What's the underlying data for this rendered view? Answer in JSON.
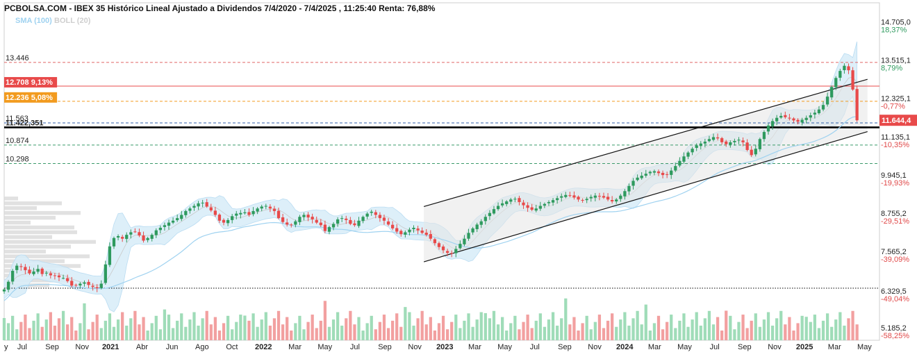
{
  "chart_data": {
    "type": "candlestick",
    "title": "PCBOLSA.COM - IBEX 35 Histórico Lineal Ajustado a Dividendos 7/4/2020 - 7/4/2025 , 11:25:40 Renta: 76,88%",
    "legend": [
      {
        "name": "SMA (100)",
        "color": "#9fd2f0"
      },
      {
        "name": "BOLL (20)",
        "color": "#cfcfcf"
      }
    ],
    "y_range": [
      4800,
      15300
    ],
    "y_ticks": [
      {
        "price": "14.705,0",
        "pct": "18,37%",
        "value": 14705,
        "dir": "pos"
      },
      {
        "price": "13.515,1",
        "pct": "8,79%",
        "value": 13515.1,
        "dir": "pos"
      },
      {
        "price": "12.325,1",
        "pct": "-0,77%",
        "value": 12325.1,
        "dir": "neg"
      },
      {
        "price": "11.135,1",
        "pct": "-10,35%",
        "value": 11135.1,
        "dir": "neg"
      },
      {
        "price": "9.945,1",
        "pct": "-19,93%",
        "value": 9945.1,
        "dir": "neg"
      },
      {
        "price": "8.755,2",
        "pct": "-29,51%",
        "value": 8755.2,
        "dir": "neg"
      },
      {
        "price": "7.565,2",
        "pct": "-39,09%",
        "value": 7565.2,
        "dir": "neg"
      },
      {
        "price": "6.329,5",
        "pct": "-49,04%",
        "value": 6329.5,
        "dir": "neg"
      },
      {
        "price": "5.185,2",
        "pct": "-58,25%",
        "value": 5185.2,
        "dir": "neg"
      }
    ],
    "current_price": {
      "label": "11.644,4",
      "value": 11644.4,
      "color": "#e84a4a"
    },
    "levels": [
      {
        "label": "13.446",
        "value": 13446,
        "style": "dashed",
        "color": "#e06666"
      },
      {
        "label": "12.708  9,13%",
        "value": 12708,
        "style": "solid",
        "color": "#e84a4a",
        "boxed": true
      },
      {
        "label": "12.236  5,08%",
        "value": 12236,
        "style": "dashed",
        "color": "#f29b1f",
        "boxed": true
      },
      {
        "label": "11.563",
        "value": 11563,
        "style": "dashed",
        "color": "#2f5ea8"
      },
      {
        "label": "11.422,351",
        "value": 11422.351,
        "style": "thick",
        "color": "#000000"
      },
      {
        "label": "10.874",
        "value": 10874,
        "style": "dashed",
        "color": "#3a9a6a"
      },
      {
        "label": "10.298",
        "value": 10298,
        "style": "dashed",
        "color": "#3a9a6a"
      },
      {
        "label": "",
        "value": 6420,
        "style": "dotted",
        "color": "#000000"
      }
    ],
    "x_labels": [
      {
        "t": 0.0,
        "label": "y"
      },
      {
        "t": 0.6,
        "label": "Jul"
      },
      {
        "t": 1.6,
        "label": "Sep"
      },
      {
        "t": 2.6,
        "label": "Nov"
      },
      {
        "t": 3.55,
        "label": "2021",
        "year": true
      },
      {
        "t": 4.6,
        "label": "Abr"
      },
      {
        "t": 5.6,
        "label": "Jun"
      },
      {
        "t": 6.6,
        "label": "Ago"
      },
      {
        "t": 7.6,
        "label": "Oct"
      },
      {
        "t": 8.65,
        "label": "2022",
        "year": true
      },
      {
        "t": 9.7,
        "label": "Mar"
      },
      {
        "t": 10.7,
        "label": "May"
      },
      {
        "t": 11.7,
        "label": "Jul"
      },
      {
        "t": 12.7,
        "label": "Sep"
      },
      {
        "t": 13.7,
        "label": "Nov"
      },
      {
        "t": 14.7,
        "label": "2023",
        "year": true
      },
      {
        "t": 15.7,
        "label": "Mar"
      },
      {
        "t": 16.7,
        "label": "May"
      },
      {
        "t": 17.7,
        "label": "Jul"
      },
      {
        "t": 18.7,
        "label": "Sep"
      },
      {
        "t": 19.7,
        "label": "Nov"
      },
      {
        "t": 20.7,
        "label": "2024",
        "year": true
      },
      {
        "t": 21.7,
        "label": "Mar"
      },
      {
        "t": 22.7,
        "label": "May"
      },
      {
        "t": 23.7,
        "label": "Jul"
      },
      {
        "t": 24.7,
        "label": "Sep"
      },
      {
        "t": 25.7,
        "label": "Nov"
      },
      {
        "t": 26.7,
        "label": "2025",
        "year": true
      },
      {
        "t": 27.7,
        "label": "Mar"
      },
      {
        "t": 28.7,
        "label": "May"
      }
    ],
    "trend_channel": {
      "upper": [
        [
          14.0,
          8960
        ],
        [
          28.8,
          12920
        ]
      ],
      "lower": [
        [
          14.0,
          7240
        ],
        [
          28.8,
          11290
        ]
      ]
    },
    "series": [
      {
        "name": "IBEX 35",
        "type": "candlestick",
        "t_start": 0.0,
        "t_end": 28.45,
        "close": [
          6380,
          6620,
          6960,
          7120,
          7080,
          6980,
          6880,
          6940,
          7020,
          6860,
          6900,
          6820,
          6800,
          6760,
          6740,
          6640,
          6500,
          6520,
          6560,
          6600,
          6520,
          6460,
          6420,
          6560,
          7160,
          7720,
          7980,
          8040,
          7960,
          8080,
          8160,
          8180,
          8060,
          7900,
          7980,
          8080,
          8220,
          8300,
          8380,
          8460,
          8520,
          8600,
          8700,
          8820,
          8900,
          8980,
          9060,
          9080,
          8960,
          8840,
          8700,
          8520,
          8460,
          8540,
          8660,
          8740,
          8760,
          8780,
          8700,
          8820,
          8900,
          8960,
          8980,
          8900,
          8820,
          8600,
          8480,
          8400,
          8380,
          8500,
          8640,
          8700,
          8620,
          8560,
          8460,
          8380,
          8200,
          8320,
          8420,
          8560,
          8600,
          8540,
          8420,
          8380,
          8520,
          8640,
          8740,
          8800,
          8700,
          8600,
          8520,
          8400,
          8280,
          8180,
          8100,
          8160,
          8240,
          8300,
          8220,
          8140,
          8080,
          7960,
          7820,
          7700,
          7600,
          7520,
          7500,
          7640,
          7800,
          7960,
          8140,
          8280,
          8400,
          8500,
          8640,
          8760,
          8880,
          8980,
          9060,
          9120,
          9180,
          9200,
          9100,
          9000,
          8920,
          8860,
          8900,
          8980,
          9040,
          9100,
          9160,
          9220,
          9280,
          9320,
          9300,
          9240,
          9180,
          9160,
          9200,
          9260,
          9300,
          9280,
          9240,
          9180,
          9120,
          9180,
          9300,
          9440,
          9600,
          9760,
          9860,
          9920,
          9980,
          10040,
          10060,
          10000,
          9940,
          9960,
          10080,
          10220,
          10380,
          10520,
          10640,
          10760,
          10860,
          10920,
          10980,
          11060,
          11120,
          11080,
          10960,
          10900,
          10960,
          11000,
          11040,
          10960,
          10720,
          10560,
          10760,
          11060,
          11280,
          11480,
          11620,
          11720,
          11780,
          11740,
          11700,
          11640,
          11600,
          11660,
          11720,
          11800,
          11880,
          11980,
          12120,
          12380,
          12680,
          12960,
          13180,
          13340,
          13200,
          12600,
          11644
        ]
      }
    ]
  }
}
